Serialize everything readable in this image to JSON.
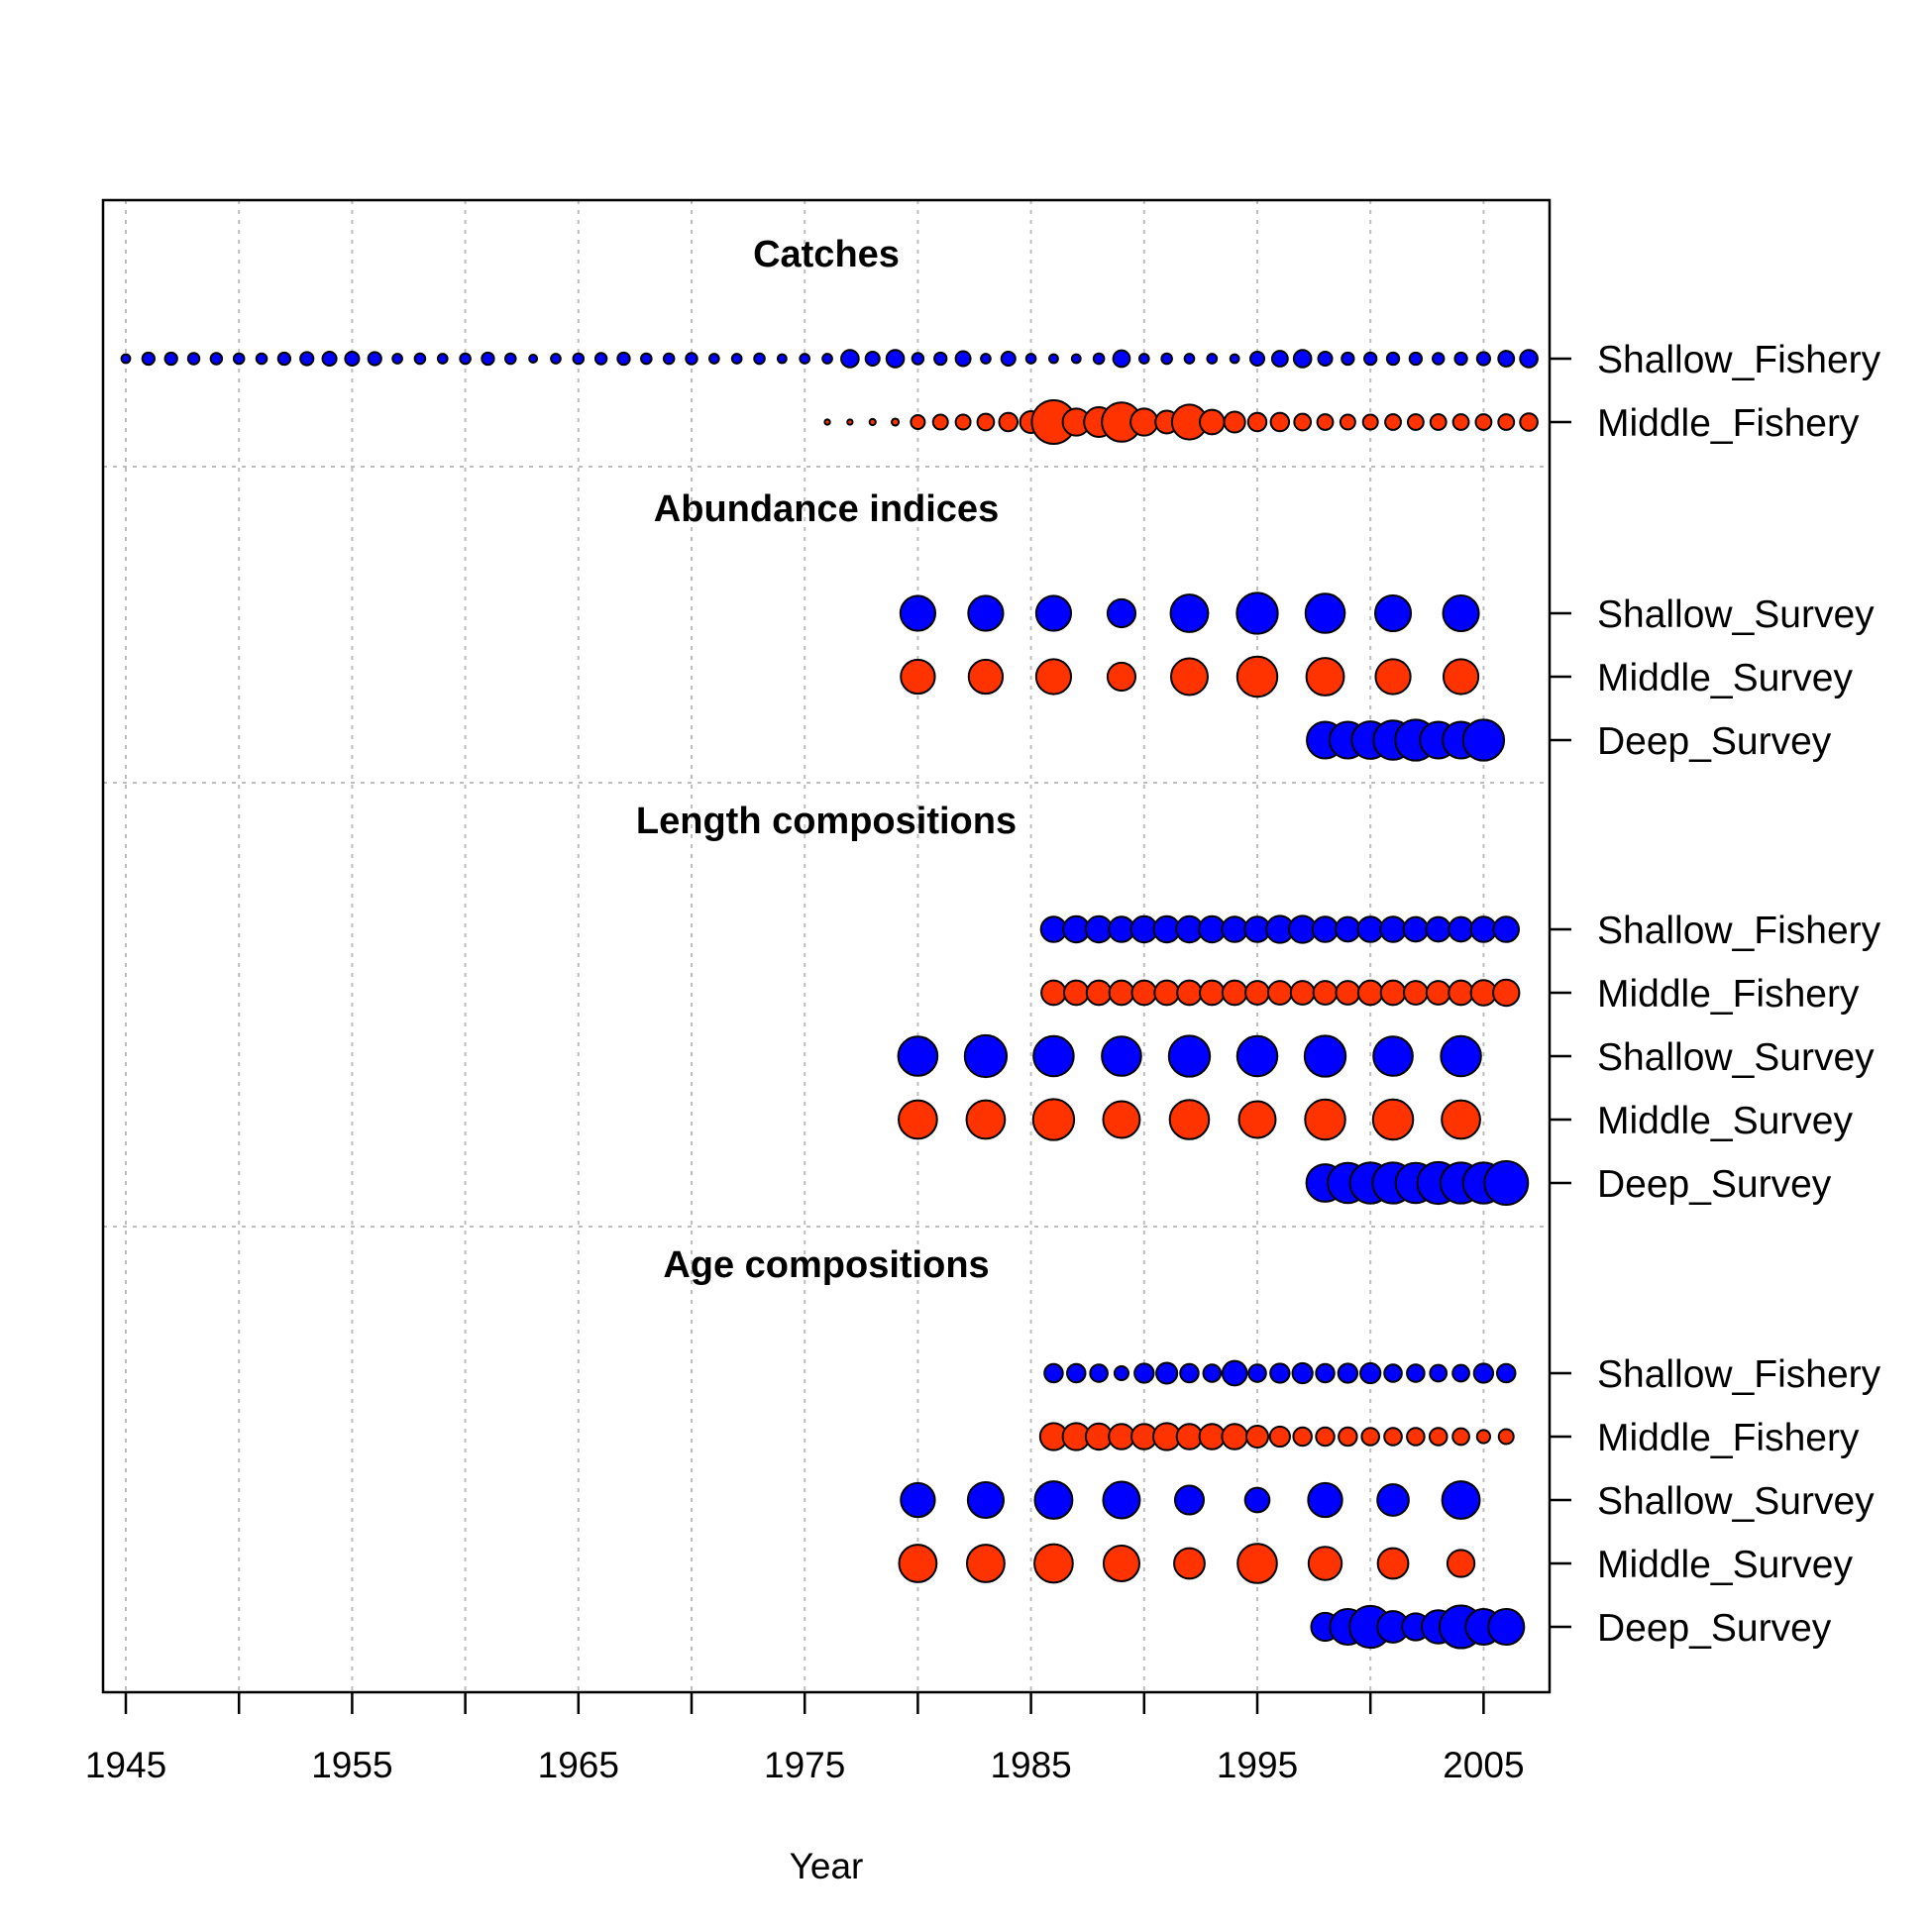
{
  "chart_data": {
    "type": "scatter",
    "xlabel": "Year",
    "xlim": [
      1944,
      2008
    ],
    "x_ticks": [
      1945,
      1950,
      1955,
      1960,
      1965,
      1970,
      1975,
      1980,
      1985,
      1990,
      1995,
      2000,
      2005
    ],
    "x_tick_labels": [
      "1945",
      "1955",
      "1965",
      "1975",
      "1985",
      "1995",
      "2005"
    ],
    "grid": true,
    "colors": {
      "fleet_blue": "#0000FF",
      "fleet_red": "#FF3300",
      "outline": "#000000",
      "grid": "#bdbdbd"
    },
    "sections": [
      {
        "title": "Catches",
        "series": [
          {
            "name": "Shallow_Fishery",
            "color": "#0000FF",
            "years": [
              1945,
              1946,
              1947,
              1948,
              1949,
              1950,
              1951,
              1952,
              1953,
              1954,
              1955,
              1956,
              1957,
              1958,
              1959,
              1960,
              1961,
              1962,
              1963,
              1964,
              1965,
              1966,
              1967,
              1968,
              1969,
              1970,
              1971,
              1972,
              1973,
              1974,
              1975,
              1976,
              1977,
              1978,
              1979,
              1980,
              1981,
              1982,
              1983,
              1984,
              1985,
              1986,
              1987,
              1988,
              1989,
              1990,
              1991,
              1992,
              1993,
              1994,
              1995,
              1996,
              1997,
              1998,
              1999,
              2000,
              2001,
              2002,
              2003,
              2004,
              2005,
              2006,
              2007
            ],
            "sizes": [
              0.2,
              0.28,
              0.28,
              0.26,
              0.26,
              0.24,
              0.24,
              0.28,
              0.3,
              0.32,
              0.32,
              0.3,
              0.22,
              0.24,
              0.22,
              0.24,
              0.28,
              0.24,
              0.18,
              0.22,
              0.24,
              0.26,
              0.28,
              0.24,
              0.24,
              0.26,
              0.22,
              0.22,
              0.24,
              0.2,
              0.22,
              0.22,
              0.4,
              0.32,
              0.4,
              0.26,
              0.28,
              0.34,
              0.22,
              0.32,
              0.22,
              0.2,
              0.2,
              0.24,
              0.38,
              0.22,
              0.24,
              0.22,
              0.22,
              0.2,
              0.32,
              0.36,
              0.4,
              0.32,
              0.28,
              0.28,
              0.28,
              0.28,
              0.26,
              0.28,
              0.3,
              0.36,
              0.4
            ]
          },
          {
            "name": "Middle_Fishery",
            "color": "#FF3300",
            "years": [
              1976,
              1977,
              1978,
              1979,
              1980,
              1981,
              1982,
              1983,
              1984,
              1985,
              1986,
              1987,
              1988,
              1989,
              1990,
              1991,
              1992,
              1993,
              1994,
              1995,
              1996,
              1997,
              1998,
              1999,
              2000,
              2001,
              2002,
              2003,
              2004,
              2005,
              2006,
              2007
            ],
            "sizes": [
              0.12,
              0.12,
              0.14,
              0.16,
              0.32,
              0.34,
              0.34,
              0.38,
              0.42,
              0.5,
              1.0,
              0.62,
              0.68,
              0.9,
              0.62,
              0.52,
              0.8,
              0.56,
              0.48,
              0.42,
              0.42,
              0.38,
              0.36,
              0.34,
              0.34,
              0.36,
              0.36,
              0.36,
              0.36,
              0.36,
              0.36,
              0.4
            ]
          }
        ]
      },
      {
        "title": "Abundance indices",
        "series": [
          {
            "name": "Shallow_Survey",
            "color": "#0000FF",
            "years": [
              1980,
              1983,
              1986,
              1989,
              1992,
              1995,
              1998,
              2001,
              2004
            ],
            "sizes": [
              0.8,
              0.8,
              0.8,
              0.64,
              0.86,
              0.94,
              0.9,
              0.82,
              0.82
            ]
          },
          {
            "name": "Middle_Survey",
            "color": "#FF3300",
            "years": [
              1980,
              1983,
              1986,
              1989,
              1992,
              1995,
              1998,
              2001,
              2004
            ],
            "sizes": [
              0.78,
              0.78,
              0.8,
              0.64,
              0.84,
              0.92,
              0.86,
              0.8,
              0.8
            ]
          },
          {
            "name": "Deep_Survey",
            "color": "#0000FF",
            "years": [
              1998,
              1999,
              2000,
              2001,
              2002,
              2003,
              2004,
              2005
            ],
            "sizes": [
              0.84,
              0.84,
              0.86,
              0.9,
              0.94,
              0.84,
              0.84,
              0.94
            ]
          }
        ]
      },
      {
        "title": "Length compositions",
        "series": [
          {
            "name": "Shallow_Fishery",
            "color": "#0000FF",
            "years": [
              1986,
              1987,
              1988,
              1989,
              1990,
              1991,
              1992,
              1993,
              1994,
              1995,
              1996,
              1997,
              1998,
              1999,
              2000,
              2001,
              2002,
              2003,
              2004,
              2005,
              2006
            ],
            "sizes": [
              0.58,
              0.6,
              0.6,
              0.58,
              0.6,
              0.6,
              0.6,
              0.6,
              0.58,
              0.58,
              0.62,
              0.62,
              0.58,
              0.56,
              0.58,
              0.58,
              0.56,
              0.56,
              0.56,
              0.58,
              0.58
            ]
          },
          {
            "name": "Middle_Fishery",
            "color": "#FF3300",
            "years": [
              1986,
              1987,
              1988,
              1989,
              1990,
              1991,
              1992,
              1993,
              1994,
              1995,
              1996,
              1997,
              1998,
              1999,
              2000,
              2001,
              2002,
              2003,
              2004,
              2005,
              2006
            ],
            "sizes": [
              0.56,
              0.56,
              0.56,
              0.56,
              0.56,
              0.56,
              0.56,
              0.56,
              0.56,
              0.54,
              0.54,
              0.54,
              0.54,
              0.54,
              0.56,
              0.56,
              0.54,
              0.54,
              0.56,
              0.58,
              0.6
            ]
          },
          {
            "name": "Shallow_Survey",
            "color": "#0000FF",
            "years": [
              1980,
              1983,
              1986,
              1989,
              1992,
              1995,
              1998,
              2001,
              2004
            ],
            "sizes": [
              0.9,
              0.96,
              0.92,
              0.9,
              0.94,
              0.92,
              0.94,
              0.9,
              0.92
            ]
          },
          {
            "name": "Middle_Survey",
            "color": "#FF3300",
            "years": [
              1980,
              1983,
              1986,
              1989,
              1992,
              1995,
              1998,
              2001,
              2004
            ],
            "sizes": [
              0.88,
              0.88,
              0.94,
              0.84,
              0.9,
              0.84,
              0.92,
              0.92,
              0.88
            ]
          },
          {
            "name": "Deep_Survey",
            "color": "#0000FF",
            "years": [
              1998,
              1999,
              2000,
              2001,
              2002,
              2003,
              2004,
              2005,
              2006
            ],
            "sizes": [
              0.86,
              0.92,
              0.94,
              0.94,
              0.92,
              0.96,
              0.94,
              0.94,
              1.0
            ]
          }
        ]
      },
      {
        "title": "Age compositions",
        "series": [
          {
            "name": "Shallow_Fishery",
            "color": "#0000FF",
            "years": [
              1986,
              1987,
              1988,
              1989,
              1990,
              1991,
              1992,
              1993,
              1994,
              1995,
              1996,
              1997,
              1998,
              1999,
              2000,
              2001,
              2002,
              2003,
              2004,
              2005,
              2006
            ],
            "sizes": [
              0.42,
              0.42,
              0.4,
              0.32,
              0.44,
              0.48,
              0.42,
              0.4,
              0.56,
              0.4,
              0.44,
              0.46,
              0.42,
              0.44,
              0.46,
              0.4,
              0.4,
              0.38,
              0.38,
              0.44,
              0.42
            ]
          },
          {
            "name": "Middle_Fishery",
            "color": "#FF3300",
            "years": [
              1986,
              1987,
              1988,
              1989,
              1990,
              1991,
              1992,
              1993,
              1994,
              1995,
              1996,
              1997,
              1998,
              1999,
              2000,
              2001,
              2002,
              2003,
              2004,
              2005,
              2006
            ],
            "sizes": [
              0.62,
              0.62,
              0.6,
              0.58,
              0.58,
              0.62,
              0.58,
              0.58,
              0.58,
              0.5,
              0.46,
              0.42,
              0.42,
              0.42,
              0.4,
              0.4,
              0.4,
              0.4,
              0.38,
              0.3,
              0.34
            ]
          },
          {
            "name": "Shallow_Survey",
            "color": "#0000FF",
            "years": [
              1980,
              1983,
              1986,
              1989,
              1992,
              1995,
              1998,
              2001,
              2004
            ],
            "sizes": [
              0.78,
              0.82,
              0.86,
              0.84,
              0.66,
              0.56,
              0.78,
              0.72,
              0.86
            ]
          },
          {
            "name": "Middle_Survey",
            "color": "#FF3300",
            "years": [
              1980,
              1983,
              1986,
              1989,
              1992,
              1995,
              1998,
              2001,
              2004
            ],
            "sizes": [
              0.86,
              0.86,
              0.88,
              0.82,
              0.7,
              0.9,
              0.76,
              0.7,
              0.62
            ]
          },
          {
            "name": "Deep_Survey",
            "color": "#0000FF",
            "years": [
              1998,
              1999,
              2000,
              2001,
              2002,
              2003,
              2004,
              2005,
              2006
            ],
            "sizes": [
              0.64,
              0.82,
              0.96,
              0.72,
              0.62,
              0.76,
              0.98,
              0.82,
              0.82
            ]
          }
        ]
      }
    ]
  }
}
